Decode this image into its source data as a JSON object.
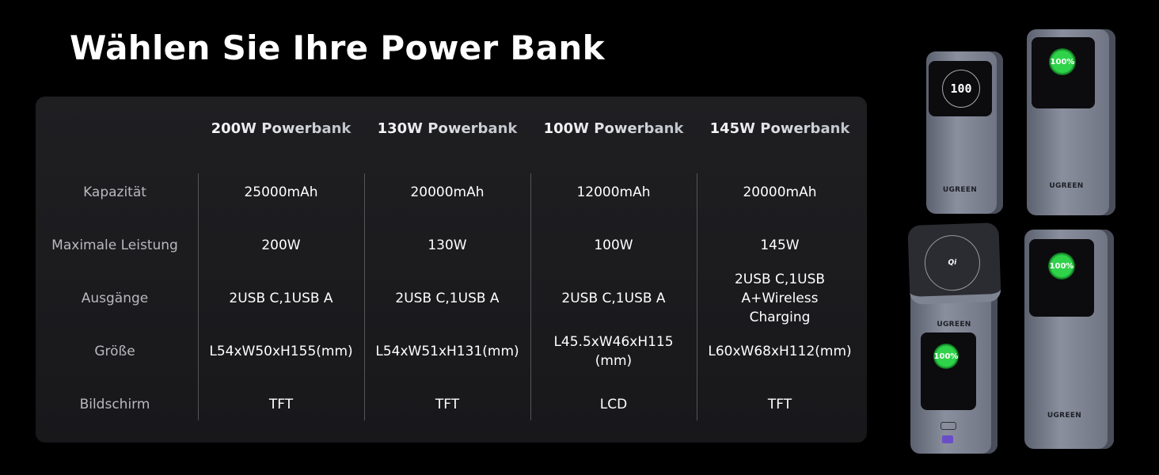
{
  "title": "Wählen Sie Ihre Power Bank",
  "columns": [
    "200W Powerbank",
    "130W Powerbank",
    "100W Powerbank",
    "145W Powerbank"
  ],
  "rows": [
    {
      "label": "Kapazität",
      "values": [
        "25000mAh",
        "20000mAh",
        "12000mAh",
        "20000mAh"
      ]
    },
    {
      "label": "Maximale Leistung",
      "values": [
        "200W",
        "130W",
        "100W",
        "145W"
      ]
    },
    {
      "label": "Ausgänge",
      "values": [
        "2USB C,1USB A",
        "2USB C,1USB A",
        "2USB C,1USB A",
        "2USB C,1USB A+Wireless Charging"
      ]
    },
    {
      "label": "Größe",
      "values": [
        "L54xW50xH155(mm)",
        "L54xW51xH131(mm)",
        "L45.5xW46xH115 (mm)",
        "L60xW68xH112(mm)"
      ]
    },
    {
      "label": "Bildschirm",
      "values": [
        "TFT",
        "TFT",
        "LCD",
        "TFT"
      ]
    }
  ],
  "products": {
    "brand": "UGREEN",
    "display_100": "100",
    "display_percent": "100%",
    "qi_logo": "Qi"
  }
}
